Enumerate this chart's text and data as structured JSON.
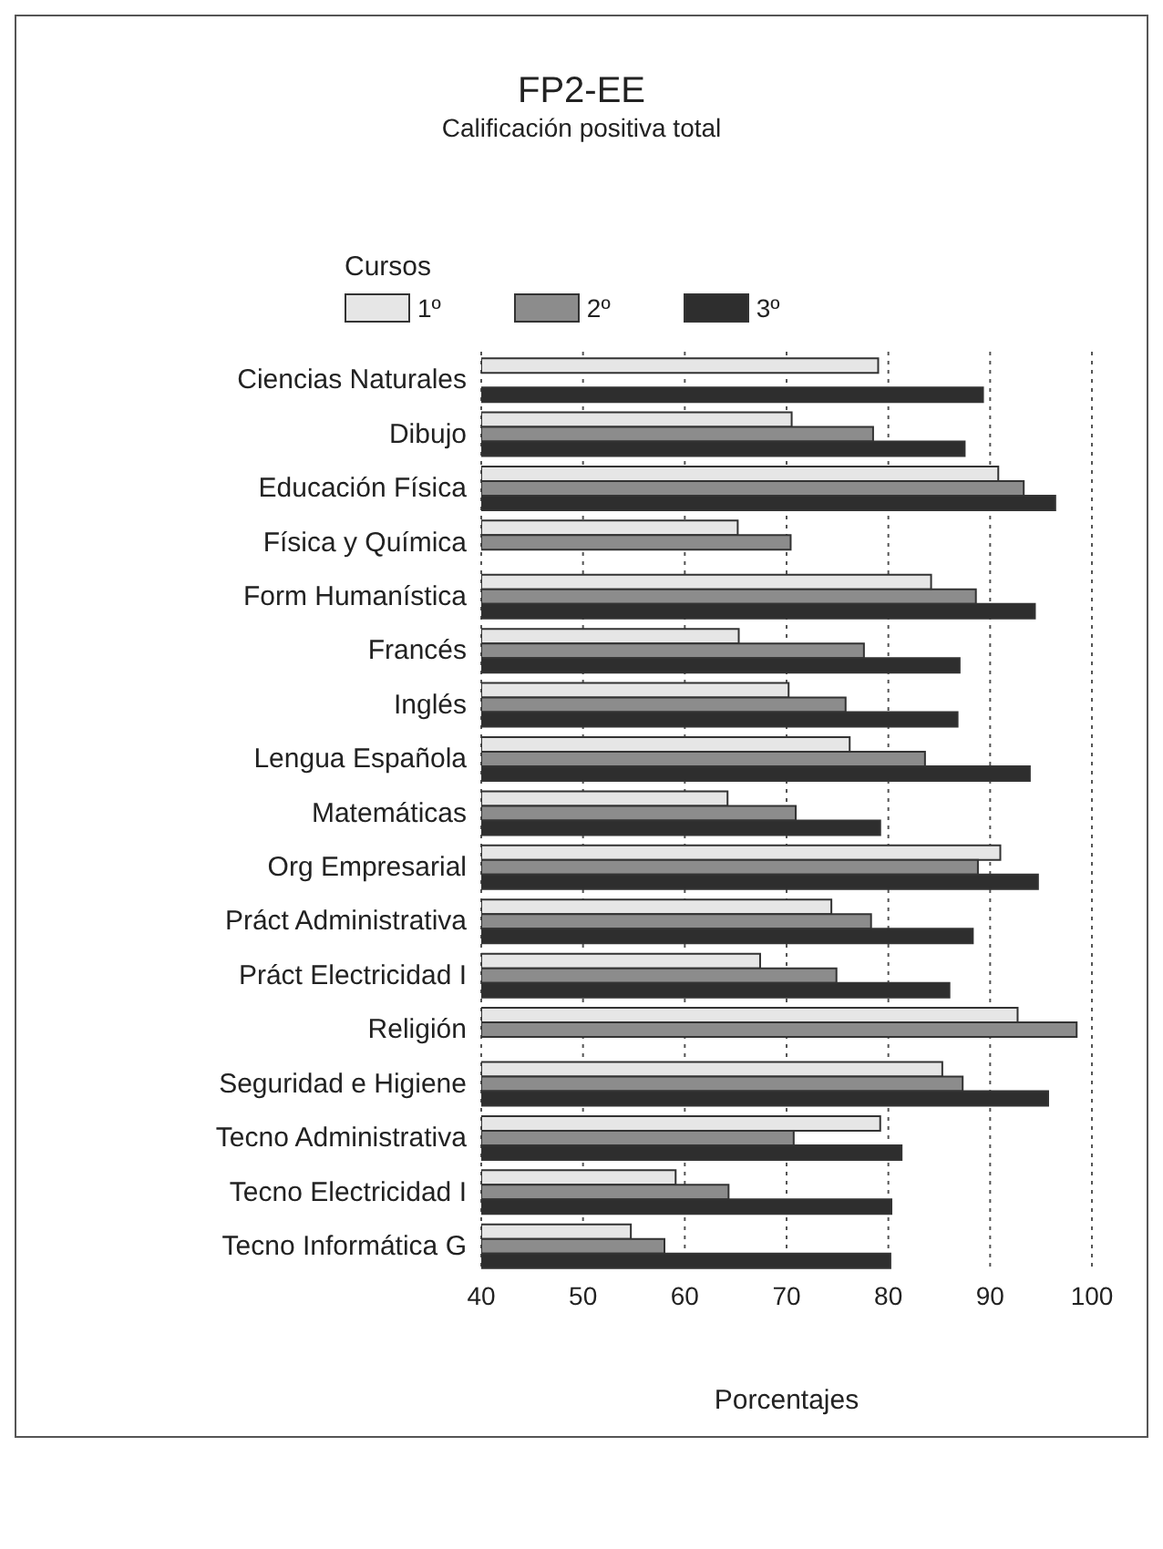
{
  "chart_data": {
    "type": "bar",
    "orientation": "horizontal",
    "title": "FP2-EE",
    "subtitle": "Calificación positiva total",
    "xlabel": "Porcentajes",
    "legend_title": "Cursos",
    "legend": "top",
    "categories": [
      "Ciencias Naturales",
      "Dibujo",
      "Educación Física",
      "Física y Química",
      "Form Humanística",
      "Francés",
      "Inglés",
      "Lengua Española",
      "Matemáticas",
      "Org Empresarial",
      "Práct Administrativa",
      "Práct Electricidad I",
      "Religión",
      "Seguridad e Higiene",
      "Tecno Administrativa",
      "Tecno Electricidad I",
      "Tecno Informática G"
    ],
    "series": [
      {
        "name": "1º",
        "color": "#e6e6e6",
        "values": [
          79,
          70.5,
          90.8,
          65.2,
          84.2,
          65.3,
          70.2,
          76.2,
          64.2,
          91,
          74.4,
          67.4,
          92.7,
          85.3,
          79.2,
          59.1,
          54.7
        ]
      },
      {
        "name": "2º",
        "color": "#8c8c8c",
        "values": [
          null,
          78.5,
          93.3,
          70.4,
          88.6,
          77.6,
          75.8,
          83.6,
          70.9,
          88.8,
          78.3,
          74.9,
          98.5,
          87.3,
          70.7,
          64.3,
          58
        ]
      },
      {
        "name": "3º",
        "color": "#2e2e2e",
        "values": [
          89.3,
          87.5,
          96.4,
          null,
          94.4,
          87,
          86.8,
          93.9,
          79.2,
          94.7,
          88.3,
          86,
          null,
          95.7,
          81.3,
          80.3,
          80.2
        ]
      }
    ],
    "xlim": [
      40,
      100
    ],
    "xticks": [
      40,
      50,
      60,
      70,
      80,
      90,
      100
    ],
    "grid": "x"
  }
}
